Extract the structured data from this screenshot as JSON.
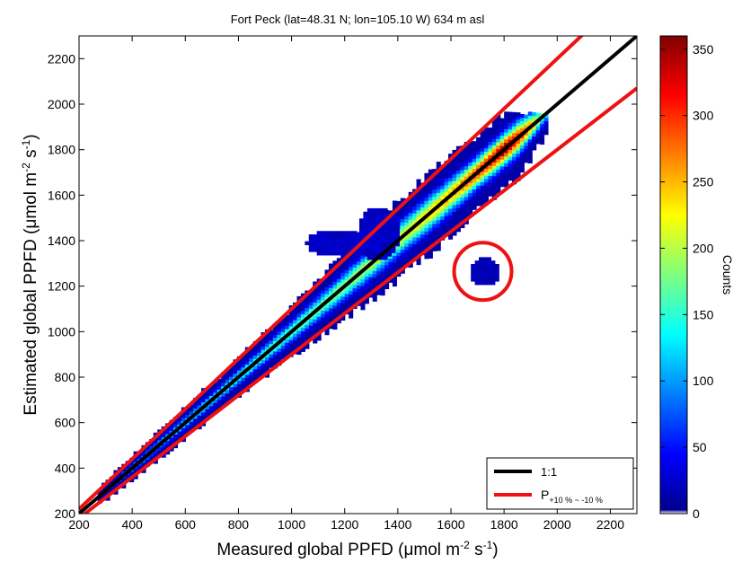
{
  "chart_data": {
    "type": "heatmap",
    "title": "Fort Peck (lat=48.31 N; lon=105.10 W) 634 m asl",
    "xlabel": {
      "main": "Measured global PPFD (",
      "mu": "μ",
      "unit": "mol m",
      "exp1": "-2",
      "mid": " s",
      "exp2": "-1",
      "close": ")"
    },
    "ylabel": {
      "main": "Estimated global PPFD (",
      "mu": "μ",
      "unit": "mol m",
      "exp1": "-2",
      "mid": " s",
      "exp2": "-1",
      "close": ")"
    },
    "xlim": [
      200,
      2300
    ],
    "ylim": [
      200,
      2300
    ],
    "xticks": [
      200,
      400,
      600,
      800,
      1000,
      1200,
      1400,
      1600,
      1800,
      2000,
      2200
    ],
    "yticks": [
      200,
      400,
      600,
      800,
      1000,
      1200,
      1400,
      1600,
      1800,
      2000,
      2200
    ],
    "colorbar": {
      "label": "Counts",
      "range": [
        0,
        360
      ],
      "ticks": [
        0,
        50,
        100,
        150,
        200,
        250,
        300,
        350
      ],
      "colormap": "jet"
    },
    "reference_lines": [
      {
        "name": "1:1",
        "slope": 1.0,
        "color": "#000000"
      },
      {
        "name_main": "P",
        "name_sub": "+10 % ~ -10 %",
        "slopes": [
          1.1,
          0.9
        ],
        "color": "#ee1111"
      }
    ],
    "density_band": {
      "x_range": [
        270,
        1960
      ],
      "y_cap": 1950,
      "peak_count": 360,
      "peak_center": [
        1760,
        1850
      ]
    },
    "outlier_cluster": {
      "center": [
        1720,
        1265
      ],
      "circled": true,
      "circle_color": "#ee1111"
    },
    "legend_position": "bottom-right",
    "grid": false
  }
}
